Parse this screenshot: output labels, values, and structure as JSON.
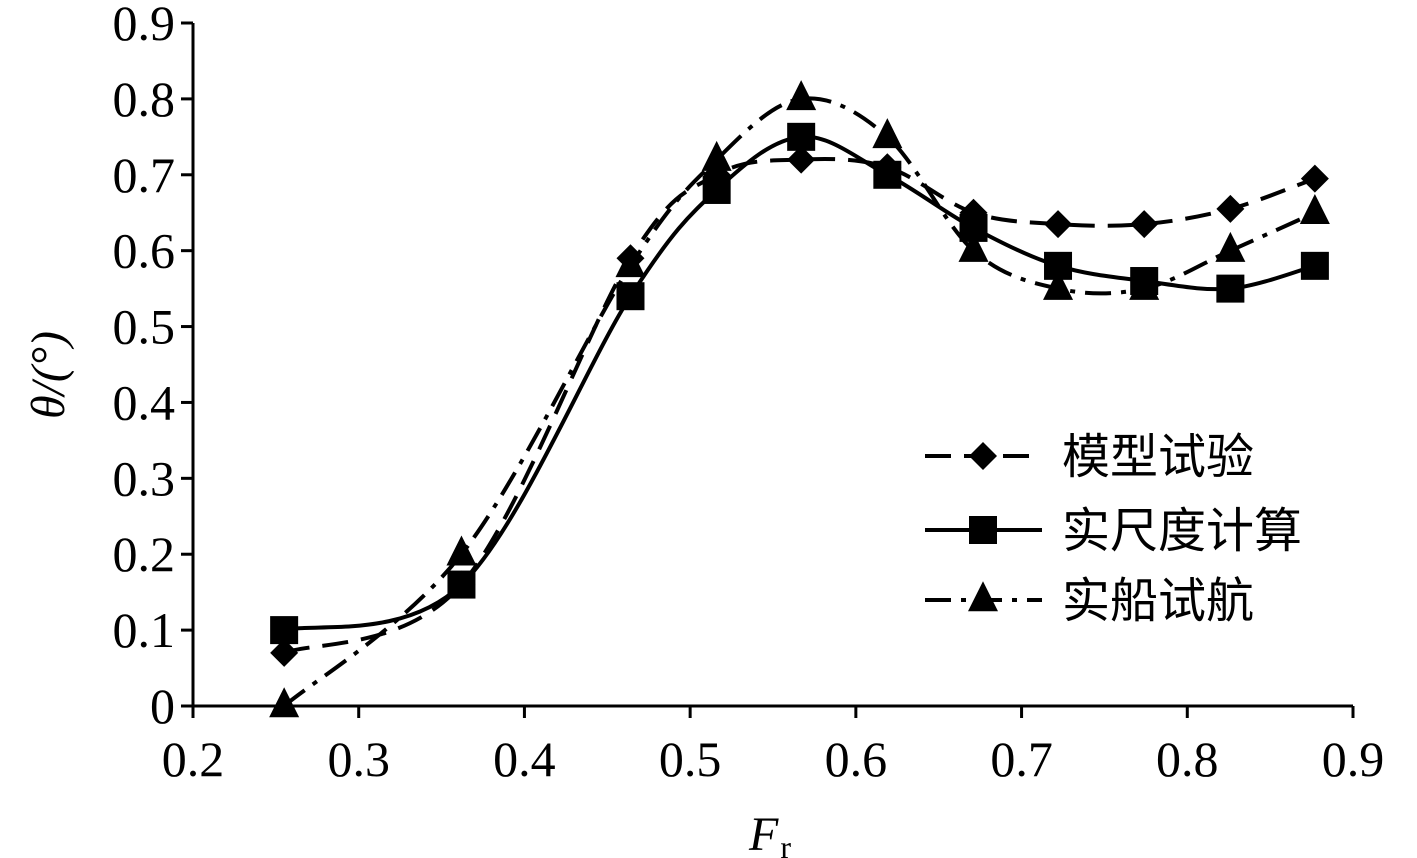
{
  "chart_data": {
    "type": "line",
    "xlabel": "F",
    "xlabel_sub": "r",
    "ylabel": "θ/(°)",
    "xlim": [
      0.2,
      0.9
    ],
    "ylim": [
      0,
      0.9
    ],
    "x_ticks": [
      "0.2",
      "0.3",
      "0.4",
      "0.5",
      "0.6",
      "0.7",
      "0.8",
      "0.9"
    ],
    "y_ticks": [
      "0",
      "0.1",
      "0.2",
      "0.3",
      "0.4",
      "0.5",
      "0.6",
      "0.7",
      "0.8",
      "0.9"
    ],
    "grid": false,
    "legend_position": "right",
    "x": [
      0.255,
      0.362,
      0.464,
      0.516,
      0.567,
      0.619,
      0.671,
      0.722,
      0.774,
      0.826,
      0.877
    ],
    "series": [
      {
        "name": "模型试验",
        "marker": "diamond",
        "line_style": "dashed",
        "values": [
          0.07,
          0.16,
          0.59,
          0.7,
          0.72,
          0.71,
          0.65,
          0.635,
          0.635,
          0.655,
          0.695
        ]
      },
      {
        "name": "实尺度计算",
        "marker": "square",
        "line_style": "solid",
        "values": [
          0.1,
          0.16,
          0.54,
          0.68,
          0.75,
          0.7,
          0.63,
          0.58,
          0.56,
          0.55,
          0.58
        ]
      },
      {
        "name": "实船试航",
        "marker": "triangle",
        "line_style": "dash-dot",
        "values": [
          0.0,
          0.2,
          0.58,
          0.72,
          0.8,
          0.75,
          0.6,
          0.55,
          0.55,
          0.6,
          0.65
        ]
      }
    ]
  }
}
